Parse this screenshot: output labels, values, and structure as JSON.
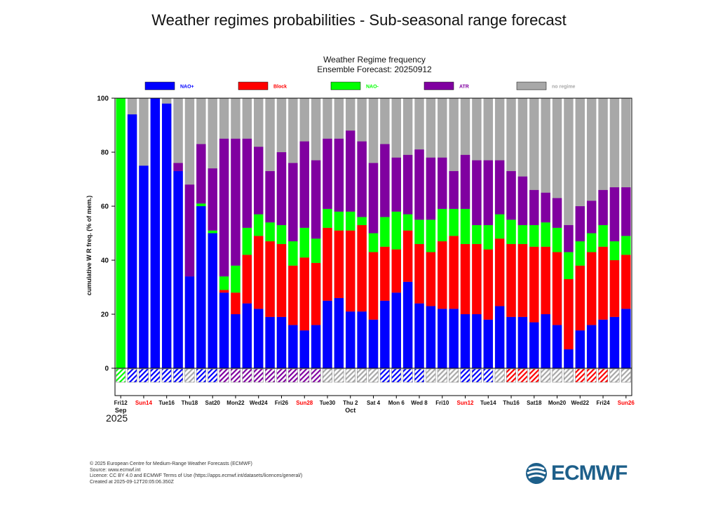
{
  "page_title": "Weather regimes probabilities - Sub-seasonal range forecast",
  "chart_data": {
    "type": "bar",
    "stacked": true,
    "title": "Weather Regime frequency",
    "subtitle": "Ensemble Forecast: 20250912",
    "ylabel": "cumulative W R freq. (% of mem.)",
    "xlabel": "",
    "ylim": [
      0,
      100
    ],
    "yticks": [
      "0",
      "20",
      "40",
      "60",
      "80",
      "100"
    ],
    "grid": false,
    "legend_position": "top",
    "legend": [
      {
        "name": "NAO+",
        "color": "#0000ff"
      },
      {
        "name": "Block",
        "color": "#ff0000"
      },
      {
        "name": "NAO-",
        "color": "#00ff00"
      },
      {
        "name": "ATR",
        "color": "#8000a0"
      },
      {
        "name": "no regime",
        "color": "#a8a8a8"
      }
    ],
    "first_bar": {
      "regime": "NAO-",
      "value": 100
    },
    "series": [
      {
        "name": "NAO+",
        "values": [
          94,
          75,
          100,
          98,
          73,
          34,
          60,
          50,
          28,
          20,
          24,
          22,
          19,
          19,
          16,
          14,
          16,
          25,
          26,
          21,
          21,
          18,
          25,
          28,
          32,
          24,
          23,
          22,
          22,
          20,
          20,
          18,
          23,
          19,
          19,
          17,
          20,
          16,
          7,
          14,
          16,
          18,
          19,
          22
        ]
      },
      {
        "name": "Block",
        "values": [
          0,
          0,
          0,
          0,
          0,
          0,
          0,
          0,
          1,
          8,
          18,
          27,
          28,
          27,
          22,
          27,
          23,
          27,
          25,
          30,
          32,
          25,
          20,
          16,
          19,
          22,
          20,
          25,
          27,
          26,
          26,
          26,
          25,
          27,
          27,
          28,
          25,
          27,
          26,
          24,
          27,
          27,
          21,
          20
        ]
      },
      {
        "name": "NAO-",
        "values": [
          0,
          0,
          0,
          0,
          0,
          0,
          1,
          1,
          5,
          10,
          10,
          8,
          7,
          7,
          9,
          11,
          9,
          7,
          7,
          7,
          3,
          7,
          11,
          14,
          6,
          9,
          12,
          12,
          10,
          13,
          7,
          9,
          9,
          9,
          7,
          8,
          9,
          9,
          10,
          9,
          7,
          8,
          7,
          7
        ]
      },
      {
        "name": "ATR",
        "values": [
          0,
          0,
          0,
          0,
          3,
          34,
          22,
          23,
          51,
          47,
          33,
          25,
          19,
          27,
          29,
          32,
          29,
          26,
          27,
          30,
          28,
          26,
          27,
          20,
          22,
          26,
          23,
          19,
          14,
          20,
          24,
          24,
          20,
          18,
          18,
          13,
          11,
          11,
          10,
          13,
          12,
          13,
          20,
          18
        ]
      }
    ],
    "dominant_regime": [
      "NAO+",
      "NAO+",
      "NAO+",
      "NAO+",
      "NAO+",
      "no regime",
      "NAO+",
      "NAO+",
      "ATR",
      "ATR",
      "ATR",
      "ATR",
      "ATR",
      "ATR",
      "ATR",
      "ATR",
      "ATR",
      "no regime",
      "no regime",
      "no regime",
      "no regime",
      "no regime",
      "NAO+",
      "NAO+",
      "NAO+",
      "NAO+",
      "no regime",
      "no regime",
      "no regime",
      "NAO+",
      "NAO+",
      "NAO+",
      "no regime",
      "Block",
      "Block",
      "Block",
      "no regime",
      "no regime",
      "no regime",
      "Block",
      "Block",
      "Block",
      "no regime",
      "no regime"
    ],
    "x_tick_labels": [
      {
        "label": "Fri12",
        "day": 0,
        "holiday": false
      },
      {
        "label": "Sun14",
        "day": 2,
        "holiday": true
      },
      {
        "label": "Tue16",
        "day": 4,
        "holiday": false
      },
      {
        "label": "Thu18",
        "day": 6,
        "holiday": false
      },
      {
        "label": "Sat20",
        "day": 8,
        "holiday": false
      },
      {
        "label": "Mon22",
        "day": 10,
        "holiday": false
      },
      {
        "label": "Wed24",
        "day": 12,
        "holiday": false
      },
      {
        "label": "Fri26",
        "day": 14,
        "holiday": false
      },
      {
        "label": "Sun28",
        "day": 16,
        "holiday": true
      },
      {
        "label": "Tue30",
        "day": 18,
        "holiday": false
      },
      {
        "label": "Thu 2",
        "day": 20,
        "holiday": false
      },
      {
        "label": "Sat 4",
        "day": 22,
        "holiday": false
      },
      {
        "label": "Mon 6",
        "day": 24,
        "holiday": false
      },
      {
        "label": "Wed 8",
        "day": 26,
        "holiday": false
      },
      {
        "label": "Fri10",
        "day": 28,
        "holiday": false
      },
      {
        "label": "Sun12",
        "day": 30,
        "holiday": true
      },
      {
        "label": "Tue14",
        "day": 32,
        "holiday": false
      },
      {
        "label": "Thu16",
        "day": 34,
        "holiday": false
      },
      {
        "label": "Sat18",
        "day": 36,
        "holiday": false
      },
      {
        "label": "Mon20",
        "day": 38,
        "holiday": false
      },
      {
        "label": "Wed22",
        "day": 40,
        "holiday": false
      },
      {
        "label": "Fri24",
        "day": 42,
        "holiday": false
      },
      {
        "label": "Sun26",
        "day": 44,
        "holiday": true
      }
    ],
    "month_labels": [
      {
        "label": "Sep",
        "day": 0
      },
      {
        "label": "Oct",
        "day": 20
      }
    ],
    "year_label": "2025"
  },
  "credits": [
    "© 2025 European Centre for Medium-Range Weather Forecasts (ECMWF)",
    "Source: www.ecmwf.int",
    "Licence: CC BY 4.0 and ECMWF Terms of Use (https://apps.ecmwf.int/datasets/licences/general/)",
    "Created at 2025-09-12T20:05:06.350Z"
  ],
  "logo_text": "ECMWF",
  "colors": {
    "holiday": "#ff0000",
    "logo": "#1d5f8a"
  }
}
